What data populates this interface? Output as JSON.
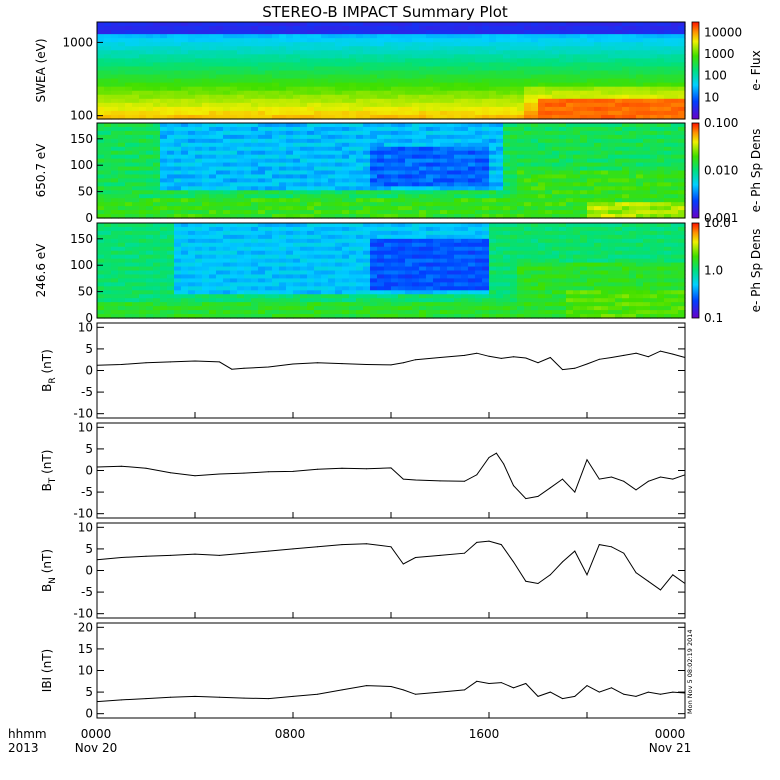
{
  "figure": {
    "title": "STEREO-B IMPACT Summary Plot",
    "time_axis": {
      "row1_labels": [
        "hhmm",
        "0000",
        "0800",
        "1600",
        "0000"
      ],
      "row2_labels": [
        "2013",
        "Nov 20",
        "",
        "",
        "Nov 21"
      ]
    },
    "timestamp_note": "Mon Nov  5 08:02:19 2014"
  },
  "chart_data": [
    {
      "type": "heatmap",
      "panel": "swea",
      "ylabel": "SWEA (eV)",
      "ylabel_display": "SWEA (eV)",
      "yscale": "log",
      "yticks": [
        "1000",
        "100"
      ],
      "ylim": [
        90,
        1900
      ],
      "colorbar": {
        "label": "e- Flux",
        "scale": "log",
        "ticks": [
          "10000",
          "1000",
          "100",
          "10"
        ],
        "range": [
          1,
          30000
        ]
      },
      "x_hours": [
        0,
        24
      ],
      "description_of_pattern": [
        {
          "t": [
            0,
            17.5
          ],
          "low_energy_level": "yellow-orange",
          "high_energy_level": "blue"
        },
        {
          "t": [
            17.5,
            24
          ],
          "low_energy_level": "orange-red",
          "high_energy_level": "blue"
        }
      ]
    },
    {
      "type": "heatmap",
      "panel": "pad_650",
      "ylabel": "650.7 eV",
      "yticks": [
        "150",
        "100",
        "50",
        "0"
      ],
      "ylim": [
        0,
        180
      ],
      "colorbar": {
        "label": "e- Ph Sp Dens",
        "scale": "log",
        "ticks": [
          "0.100",
          "0.010",
          "0.001"
        ],
        "range": [
          0.001,
          0.1
        ]
      }
    },
    {
      "type": "heatmap",
      "panel": "pad_246",
      "ylabel": "246.6 eV",
      "yticks": [
        "150",
        "100",
        "50",
        "0"
      ],
      "ylim": [
        0,
        180
      ],
      "colorbar": {
        "label": "e- Ph Sp Dens",
        "scale": "log",
        "ticks": [
          "10.0",
          "1.0",
          "0.1"
        ],
        "range": [
          0.1,
          10
        ]
      }
    },
    {
      "type": "line",
      "panel": "br",
      "ylabel_main": "B",
      "ylabel_sub": "R",
      "ylabel_unit": "(nT)",
      "yticks": [
        "10",
        "5",
        "0",
        "-5",
        "-10"
      ],
      "ylim": [
        -11,
        11
      ],
      "x_hours": [
        0,
        1,
        2,
        3,
        4,
        5,
        5.5,
        6,
        7,
        8,
        9,
        10,
        11,
        12,
        12.5,
        13,
        14,
        15,
        15.5,
        16,
        16.5,
        17,
        17.5,
        18,
        18.5,
        19,
        19.5,
        20,
        20.5,
        21,
        21.5,
        22,
        22.5,
        23,
        23.5,
        24
      ],
      "values": [
        1.2,
        1.4,
        1.8,
        2.0,
        2.2,
        2.0,
        0.3,
        0.5,
        0.8,
        1.5,
        1.8,
        1.6,
        1.4,
        1.3,
        1.8,
        2.5,
        3.0,
        3.5,
        4.0,
        3.3,
        2.8,
        3.2,
        2.9,
        1.8,
        3.0,
        0.2,
        0.5,
        1.5,
        2.6,
        3.0,
        3.5,
        4.0,
        3.2,
        4.5,
        3.8,
        3.0
      ]
    },
    {
      "type": "line",
      "panel": "bt",
      "ylabel_main": "B",
      "ylabel_sub": "T",
      "ylabel_unit": "(nT)",
      "yticks": [
        "10",
        "5",
        "0",
        "-5",
        "-10"
      ],
      "ylim": [
        -11,
        11
      ],
      "x_hours": [
        0,
        1,
        2,
        3,
        4,
        5,
        6,
        7,
        8,
        9,
        10,
        11,
        12,
        12.5,
        13,
        14,
        15,
        15.5,
        16,
        16.3,
        16.6,
        17,
        17.5,
        18,
        18.5,
        19,
        19.5,
        20,
        20.5,
        21,
        21.5,
        22,
        22.5,
        23,
        23.5,
        24
      ],
      "values": [
        0.8,
        1.0,
        0.5,
        -0.5,
        -1.2,
        -0.8,
        -0.6,
        -0.3,
        -0.2,
        0.3,
        0.5,
        0.4,
        0.6,
        -2.0,
        -2.2,
        -2.4,
        -2.5,
        -1.0,
        3.0,
        4.0,
        1.5,
        -3.5,
        -6.5,
        -6.0,
        -4.0,
        -2.0,
        -5.0,
        2.5,
        -2.0,
        -1.5,
        -2.5,
        -4.5,
        -2.5,
        -1.5,
        -2.0,
        -1.0
      ]
    },
    {
      "type": "line",
      "panel": "bn",
      "ylabel_main": "B",
      "ylabel_sub": "N",
      "ylabel_unit": "(nT)",
      "yticks": [
        "10",
        "5",
        "0",
        "-5",
        "-10"
      ],
      "ylim": [
        -11,
        11
      ],
      "x_hours": [
        0,
        1,
        2,
        3,
        4,
        5,
        6,
        7,
        8,
        9,
        10,
        11,
        12,
        12.5,
        13,
        14,
        15,
        15.5,
        16,
        16.5,
        17,
        17.5,
        18,
        18.5,
        19,
        19.5,
        20,
        20.5,
        21,
        21.5,
        22,
        22.5,
        23,
        23.5,
        24
      ],
      "values": [
        2.5,
        3.0,
        3.3,
        3.5,
        3.8,
        3.5,
        4.0,
        4.5,
        5.0,
        5.5,
        6.0,
        6.2,
        5.5,
        1.5,
        3.0,
        3.5,
        4.0,
        6.5,
        6.8,
        6.0,
        2.0,
        -2.5,
        -3.0,
        -1.0,
        2.0,
        4.5,
        -1.0,
        6.0,
        5.5,
        4.0,
        -0.5,
        -2.5,
        -4.5,
        -1.0,
        -3.0
      ]
    },
    {
      "type": "line",
      "panel": "btot",
      "ylabel": "|B| (nT)",
      "ylabel_display": "IBI (nT)",
      "yticks": [
        "20",
        "15",
        "10",
        "5",
        "0"
      ],
      "ylim": [
        -1,
        21
      ],
      "x_hours": [
        0,
        1,
        2,
        3,
        4,
        5,
        6,
        7,
        8,
        9,
        10,
        11,
        12,
        12.5,
        13,
        14,
        15,
        15.5,
        16,
        16.5,
        17,
        17.5,
        18,
        18.5,
        19,
        19.5,
        20,
        20.5,
        21,
        21.5,
        22,
        22.5,
        23,
        23.5,
        24
      ],
      "values": [
        2.8,
        3.2,
        3.5,
        3.8,
        4.0,
        3.8,
        3.6,
        3.5,
        4.0,
        4.5,
        5.5,
        6.5,
        6.3,
        5.5,
        4.5,
        5.0,
        5.5,
        7.5,
        7.0,
        7.2,
        6.0,
        7.0,
        4.0,
        5.0,
        3.5,
        4.0,
        6.5,
        5.0,
        6.0,
        4.5,
        4.0,
        5.0,
        4.5,
        5.0,
        4.8
      ]
    }
  ]
}
